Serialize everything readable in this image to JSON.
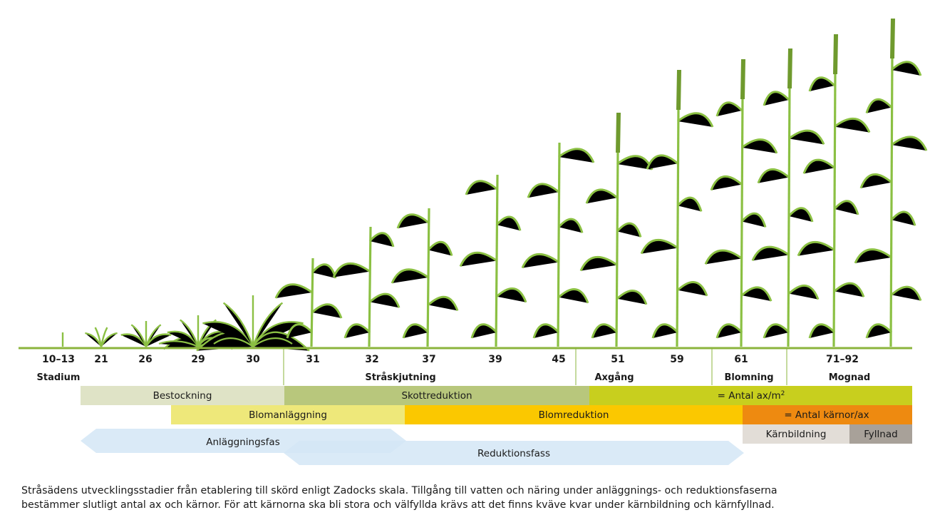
{
  "stages": [
    "10–13",
    "21",
    "26",
    "29",
    "30",
    "31",
    "32",
    "37",
    "39",
    "45",
    "51",
    "59",
    "61",
    "71–92"
  ],
  "phases": [
    "Stadium",
    "Stråskjutning",
    "Axgång",
    "Blomning",
    "Mognad"
  ],
  "bands": {
    "row1": [
      "Bestockning",
      "Skottreduktion",
      "= Antal ax/m",
      "2"
    ],
    "row2": [
      "Blomanläggning",
      "Blomreduktion",
      "= Antal kärnor/ax"
    ],
    "row3": [
      "Kärnbildning",
      "Fyllnad"
    ],
    "arrows": [
      "Anläggningsfas",
      "Reduktionsfass"
    ]
  },
  "colors": {
    "bestockning": "#dfe3c6",
    "skottreduktion": "#b8c77c",
    "antal_ax": "#c8cf1e",
    "blomanlaggning": "#eee87a",
    "blomreduktion": "#fbc800",
    "antal_karnor": "#ee8a10",
    "karnbildning": "#e2ddd7",
    "fyllnad": "#a8a199",
    "arrow": "#d3e6f6",
    "ground": "#8bb43c",
    "plant": "#8bc043"
  },
  "caption": [
    "Stråsädens utvecklingsstadier från etablering till skörd enligt Zadocks skala. Tillgång till vatten och näring under anläggnings- och reduktionsfaserna",
    "bestämmer slutligt antal ax och kärnor. För att kärnorna ska bli stora och välfyllda krävs att det finns kväve kvar under kärnbildning och kärnfyllnad."
  ]
}
